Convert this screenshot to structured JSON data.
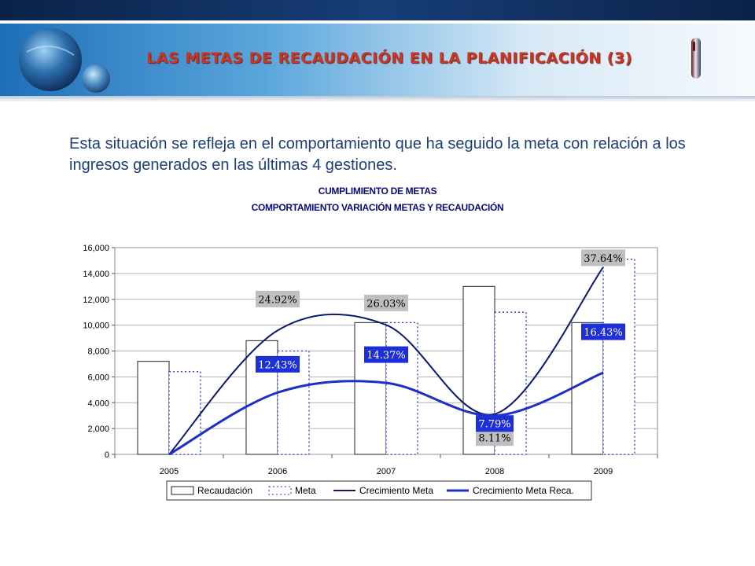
{
  "slide": {
    "title": "LAS METAS DE RECAUDACIÓN  EN LA PLANIFICACIÓN (3)",
    "intro": "Esta situación se refleja en el comportamiento que ha seguido la meta con relación a los ingresos generados en las últimas 4 gestiones."
  },
  "colors": {
    "banner_dark": "#0d2b55",
    "banner_light": "#2f7fc1",
    "title_text": "#c0392b",
    "intro_text": "#1c3f79",
    "line_meta": "#0a1a6e",
    "line_reca": "#1d2fc9",
    "label_gray": "#bfbfbf",
    "label_blue": "#1d2fd6"
  },
  "chart_data": {
    "type": "bar",
    "title": "CUMPLIMIENTO DE METAS",
    "subtitle": "COMPORTAMIENTO VARIACIÓN METAS Y RECAUDACIÓN",
    "categories": [
      "2005",
      "2006",
      "2007",
      "2008",
      "2009"
    ],
    "ylim": [
      0,
      16000
    ],
    "yticks": [
      0,
      2000,
      4000,
      6000,
      8000,
      10000,
      12000,
      14000,
      16000
    ],
    "ytick_labels": [
      "0",
      "2,000",
      "4,000",
      "6,000",
      "8,000",
      "10,000",
      "12,000",
      "14,000",
      "16,000"
    ],
    "grid": true,
    "legend_position": "bottom",
    "series": [
      {
        "name": "Recaudación",
        "type": "bar",
        "style": "solid",
        "values": [
          7200,
          8800,
          10200,
          13000,
          10200
        ]
      },
      {
        "name": "Meta",
        "type": "bar",
        "style": "dotted",
        "values": [
          6400,
          8000,
          10200,
          11000,
          15100
        ]
      },
      {
        "name": "Crecimiento Meta",
        "type": "line",
        "values": [
          0,
          24.92,
          26.03,
          8.11,
          37.64
        ],
        "labels": [
          "",
          "24.92%",
          "26.03%",
          "8.11%",
          "37.64%"
        ]
      },
      {
        "name": "Crecimiento Meta Reca.",
        "type": "line",
        "values": [
          0,
          12.43,
          14.37,
          7.79,
          16.43
        ],
        "labels": [
          "",
          "12.43%",
          "14.37%",
          "7.79%",
          "16.43%"
        ]
      }
    ]
  }
}
